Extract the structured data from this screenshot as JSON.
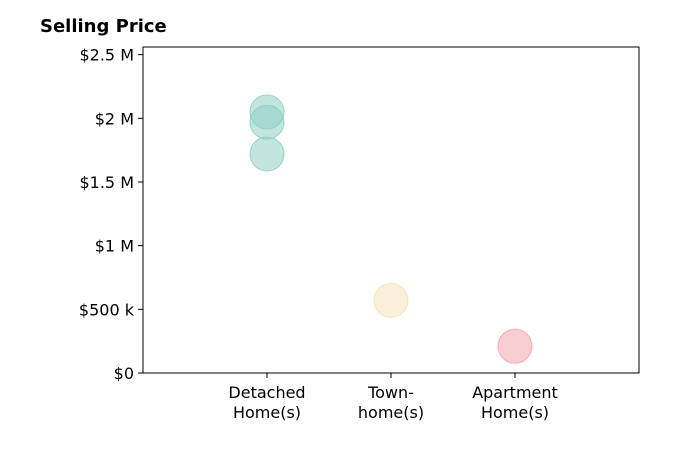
{
  "chart_data": {
    "type": "scatter",
    "title": "Selling Price",
    "xlabel": "",
    "ylabel": "",
    "categories": [
      [
        "Detached",
        "Home(s)"
      ],
      [
        "Town-",
        "home(s)"
      ],
      [
        "Apartment",
        "Home(s)"
      ]
    ],
    "ylim": [
      0,
      2560000
    ],
    "yticks": [
      {
        "value": 0,
        "label": "$0"
      },
      {
        "value": 500000,
        "label": "$500 k"
      },
      {
        "value": 1000000,
        "label": "$1 M"
      },
      {
        "value": 1500000,
        "label": "$1.5 M"
      },
      {
        "value": 2000000,
        "label": "$2 M"
      },
      {
        "value": 2500000,
        "label": "$2.5 M"
      }
    ],
    "grid": false,
    "series": [
      {
        "category_index": 0,
        "color": "#8fd0c4",
        "values": [
          2050000,
          1970000,
          1720000
        ]
      },
      {
        "category_index": 1,
        "color": "#f6e2b8",
        "values": [
          570000
        ]
      },
      {
        "category_index": 2,
        "color": "#f4a6ad",
        "values": [
          210000
        ]
      }
    ]
  }
}
